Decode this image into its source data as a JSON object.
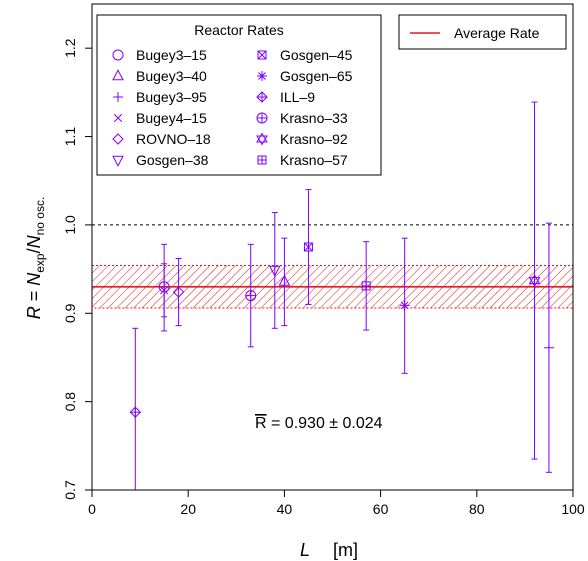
{
  "chart_data": {
    "type": "scatter",
    "xlabel_symbol": "L",
    "xlabel_unit": "[m]",
    "ylabel": {
      "lhs": "R",
      "num": "N",
      "num_sub": "exp",
      "den": "N",
      "den_sub": "no osc."
    },
    "xlim": [
      0,
      100
    ],
    "ylim": [
      0.7,
      1.25
    ],
    "x_ticks": [
      0,
      20,
      40,
      60,
      80,
      100
    ],
    "y_ticks": [
      0.7,
      0.8,
      0.9,
      1.0,
      1.1,
      1.2
    ],
    "x_tick_labels": [
      "0",
      "20",
      "40",
      "60",
      "80",
      "100"
    ],
    "y_tick_labels": [
      "0.7",
      "0.8",
      "0.9",
      "1.0",
      "1.1",
      "1.2"
    ],
    "reference_line": {
      "y": 1.0,
      "style": "dashed",
      "color": "#000000"
    },
    "average": {
      "value": 0.93,
      "uncertainty": 0.024,
      "band": [
        0.906,
        0.954
      ],
      "color": "#e41a1c",
      "label": "Average Rate",
      "annotation_lhs": "R",
      "annotation_rhs": " = 0.930 ± 0.024"
    },
    "legend_title": "Reactor Rates",
    "series_color": "#7f00ff",
    "series": [
      {
        "name": "Bugey3–15",
        "marker": "circle",
        "x": 15,
        "y": 0.93,
        "err_lo": 0.88,
        "err_hi": 0.978
      },
      {
        "name": "Bugey3–40",
        "marker": "triangle-up",
        "x": 40,
        "y": 0.936,
        "err_lo": 0.886,
        "err_hi": 0.985
      },
      {
        "name": "Bugey3–95",
        "marker": "plus",
        "x": 95,
        "y": 0.861,
        "err_lo": 0.72,
        "err_hi": 1.002
      },
      {
        "name": "Bugey4–15",
        "marker": "cross",
        "x": 15,
        "y": 0.926,
        "err_lo": 0.896,
        "err_hi": 0.956
      },
      {
        "name": "ROVNO–18",
        "marker": "diamond",
        "x": 18,
        "y": 0.924,
        "err_lo": 0.886,
        "err_hi": 0.962
      },
      {
        "name": "Gosgen–38",
        "marker": "triangle-down",
        "x": 38,
        "y": 0.949,
        "err_lo": 0.883,
        "err_hi": 1.014
      },
      {
        "name": "Gosgen–45",
        "marker": "square-x",
        "x": 45,
        "y": 0.975,
        "err_lo": 0.91,
        "err_hi": 1.04
      },
      {
        "name": "Gosgen–65",
        "marker": "asterisk",
        "x": 65,
        "y": 0.909,
        "err_lo": 0.832,
        "err_hi": 0.985
      },
      {
        "name": "ILL–9",
        "marker": "diamond-plus",
        "x": 9,
        "y": 0.788,
        "err_lo": 0.693,
        "err_hi": 0.883
      },
      {
        "name": "Krasno–33",
        "marker": "circle-plus",
        "x": 33,
        "y": 0.92,
        "err_lo": 0.862,
        "err_hi": 0.978
      },
      {
        "name": "Krasno–92",
        "marker": "star-of-david",
        "x": 92,
        "y": 0.937,
        "err_lo": 0.735,
        "err_hi": 1.139
      },
      {
        "name": "Krasno–57",
        "marker": "square-plus",
        "x": 57,
        "y": 0.931,
        "err_lo": 0.881,
        "err_hi": 0.981
      }
    ]
  }
}
